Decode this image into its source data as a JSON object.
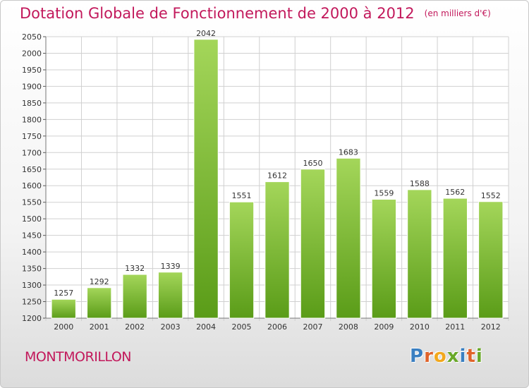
{
  "header": {
    "title": "Dotation Globale de Fonctionnement de 2000 à 2012",
    "unit": "(en milliers d'€)"
  },
  "footer": {
    "commune": "MONTMORILLON",
    "logo_letters": [
      "P",
      "r",
      "o",
      "x",
      "i",
      "t",
      "i"
    ],
    "logo_colors": [
      "#3a7fc1",
      "#e0632a",
      "#f2a81d",
      "#69a829",
      "#3a7fc1",
      "#e0632a",
      "#69a829"
    ]
  },
  "colors": {
    "title": "#c2185b",
    "bar_light": "#a4d65a",
    "bar_dark": "#5a9c18",
    "grid": "#d0d0d0"
  },
  "chart_data": {
    "type": "bar",
    "title": "Dotation Globale de Fonctionnement de 2000 à 2012",
    "subtitle": "(en milliers d'€)",
    "categories": [
      "2000",
      "2001",
      "2002",
      "2003",
      "2004",
      "2005",
      "2006",
      "2007",
      "2008",
      "2009",
      "2010",
      "2011",
      "2012"
    ],
    "values": [
      1257,
      1292,
      1332,
      1339,
      2042,
      1551,
      1612,
      1650,
      1683,
      1559,
      1588,
      1562,
      1552
    ],
    "ylim": [
      1200,
      2050
    ],
    "yticks": [
      1200,
      1250,
      1300,
      1350,
      1400,
      1450,
      1500,
      1550,
      1600,
      1650,
      1700,
      1750,
      1800,
      1850,
      1900,
      1950,
      2000,
      2050
    ],
    "grid": true,
    "xlabel": "",
    "ylabel": ""
  }
}
